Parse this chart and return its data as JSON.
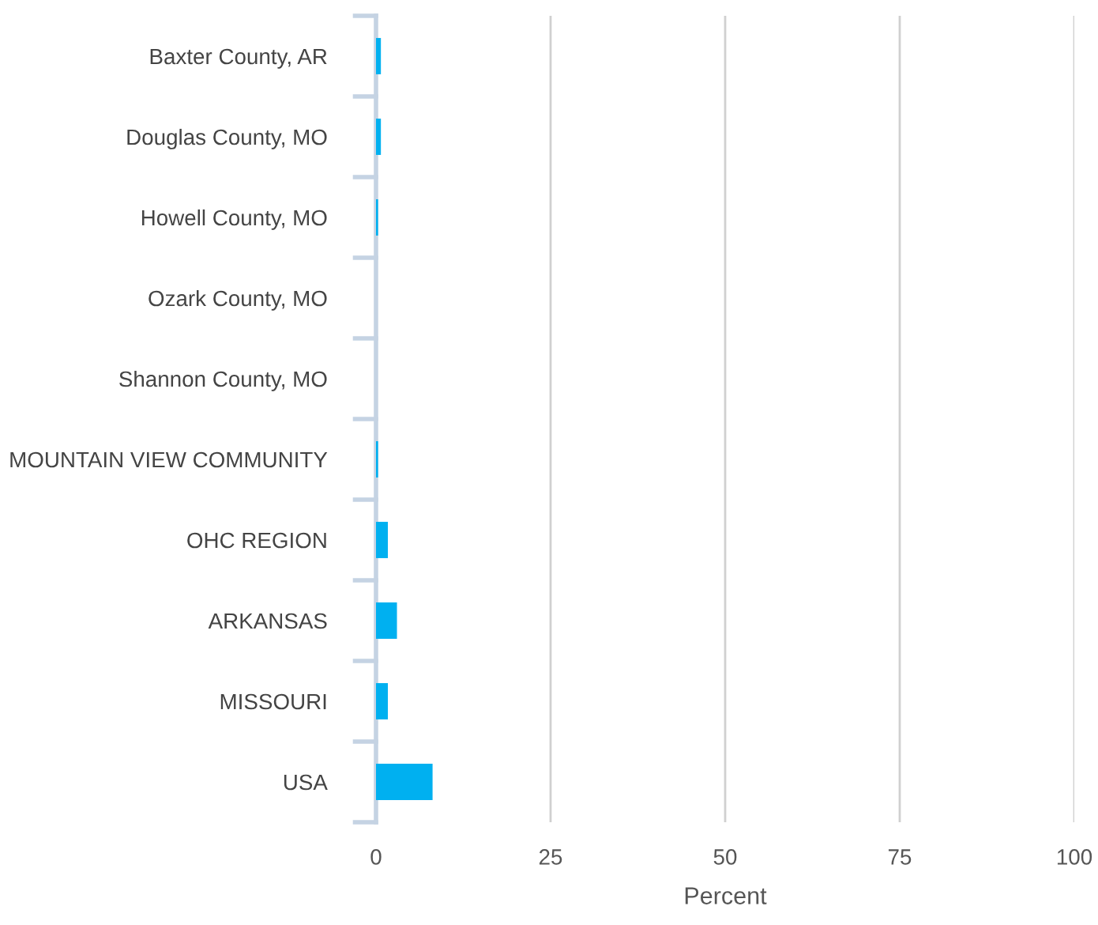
{
  "chart_data": {
    "type": "bar",
    "orientation": "horizontal",
    "xlabel": "Percent",
    "categories": [
      "Baxter County, AR",
      "Douglas County, MO",
      "Howell County, MO",
      "Ozark County, MO",
      "Shannon County, MO",
      "MOUNTAIN VIEW COMMUNITY",
      "OHC REGION",
      "ARKANSAS",
      "MISSOURI",
      "USA"
    ],
    "values": [
      0.7,
      0.7,
      0.3,
      0,
      0,
      0.3,
      1.7,
      3.0,
      1.7,
      8.1
    ],
    "color": "#00b0f0",
    "xlim": [
      0,
      100
    ],
    "xticks": [
      0,
      25,
      50,
      75,
      100
    ],
    "grid": "x"
  }
}
